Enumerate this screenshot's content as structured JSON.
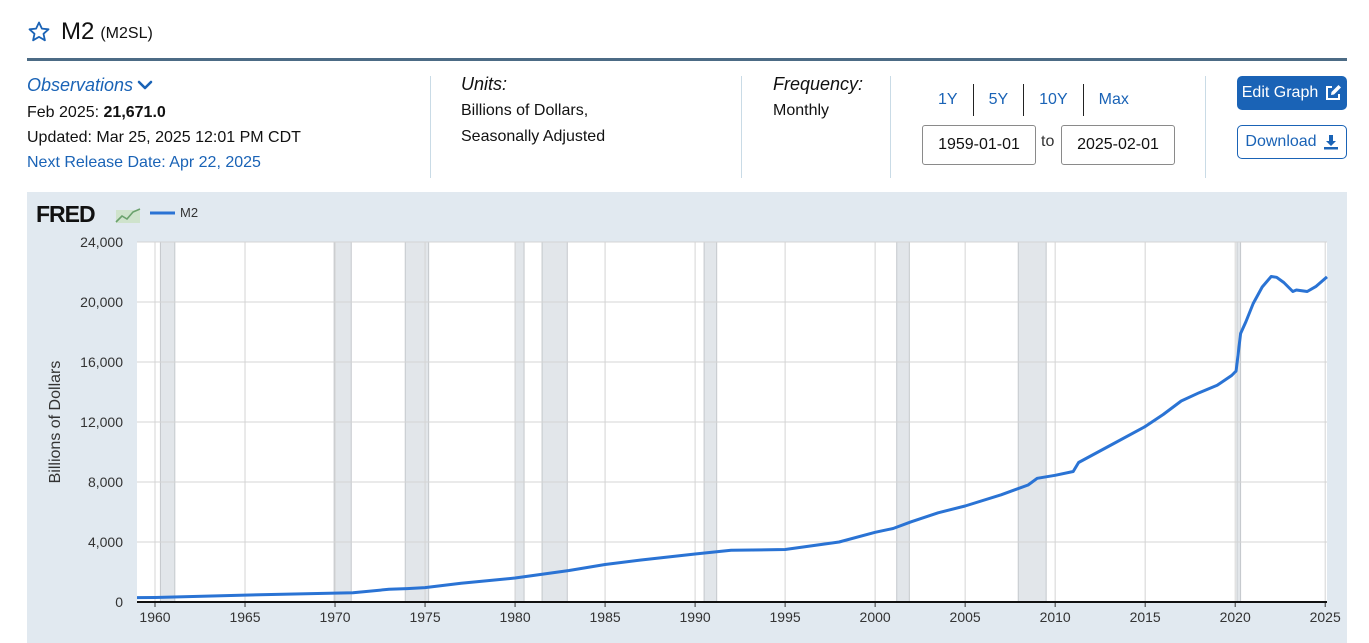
{
  "header": {
    "title": "M2",
    "series_id": "(M2SL)",
    "favorite_icon": "star-outline-icon"
  },
  "observations": {
    "label": "Observations",
    "date_label": "Feb 2025:",
    "value": "21,671.0",
    "updated": "Updated: Mar 25, 2025 12:01 PM CDT",
    "next_release": "Next Release Date: Apr 22, 2025"
  },
  "units": {
    "label": "Units:",
    "line1": "Billions of Dollars,",
    "line2": "Seasonally Adjusted"
  },
  "frequency": {
    "label": "Frequency:",
    "value": "Monthly"
  },
  "range": {
    "buttons": [
      "1Y",
      "5Y",
      "10Y",
      "Max"
    ],
    "start": "1959-01-01",
    "to_label": "to",
    "end": "2025-02-01"
  },
  "actions": {
    "edit_label": "Edit Graph",
    "download_label": "Download"
  },
  "colors": {
    "accent": "#1a63b6",
    "line": "#2a73d4",
    "recession": "#e2e6ea",
    "chart_bg": "#e1e9f0"
  },
  "chart_data": {
    "type": "line",
    "logo": "FRED",
    "legend": [
      {
        "name": "M2",
        "color": "#2a73d4"
      }
    ],
    "ylabel": "Billions of Dollars",
    "xlabel": "",
    "xlim": [
      1959.0,
      2025.1
    ],
    "ylim": [
      0,
      24000
    ],
    "x_ticks": [
      1960,
      1965,
      1970,
      1975,
      1980,
      1985,
      1990,
      1995,
      2000,
      2005,
      2010,
      2015,
      2020,
      2025
    ],
    "y_ticks": [
      0,
      4000,
      8000,
      12000,
      16000,
      20000,
      24000
    ],
    "y_tick_labels": [
      "0",
      "4,000",
      "8,000",
      "12,000",
      "16,000",
      "20,000",
      "24,000"
    ],
    "recessions": [
      [
        1960.3,
        1961.1
      ],
      [
        1969.95,
        1970.9
      ],
      [
        1973.9,
        1975.2
      ],
      [
        1980.0,
        1980.5
      ],
      [
        1981.5,
        1982.9
      ],
      [
        1990.5,
        1991.2
      ],
      [
        2001.2,
        2001.9
      ],
      [
        2007.95,
        2009.5
      ],
      [
        2020.1,
        2020.3
      ]
    ],
    "series": [
      {
        "name": "M2",
        "x": [
          1959.0,
          1960,
          1965,
          1970,
          1971,
          1973,
          1974,
          1975,
          1977,
          1980,
          1983,
          1985,
          1987,
          1990,
          1992,
          1995,
          1998,
          2000,
          2001,
          2002,
          2003.5,
          2005,
          2007,
          2008.5,
          2009,
          2010,
          2011,
          2011.3,
          2013,
          2015,
          2016,
          2017,
          2018,
          2019,
          2019.8,
          2020.05,
          2020.3,
          2020.6,
          2021,
          2021.5,
          2022.0,
          2022.3,
          2022.7,
          2023.2,
          2023.4,
          2024,
          2024.5,
          2025.1
        ],
        "values": [
          290,
          300,
          460,
          590,
          620,
          850,
          890,
          960,
          1250,
          1600,
          2100,
          2500,
          2800,
          3200,
          3450,
          3500,
          4000,
          4650,
          4900,
          5350,
          5950,
          6400,
          7150,
          7800,
          8250,
          8450,
          8700,
          9300,
          10400,
          11700,
          12500,
          13400,
          13950,
          14450,
          15100,
          15400,
          17900,
          18700,
          19900,
          21000,
          21700,
          21650,
          21300,
          20700,
          20800,
          20700,
          21050,
          21671
        ]
      }
    ]
  }
}
